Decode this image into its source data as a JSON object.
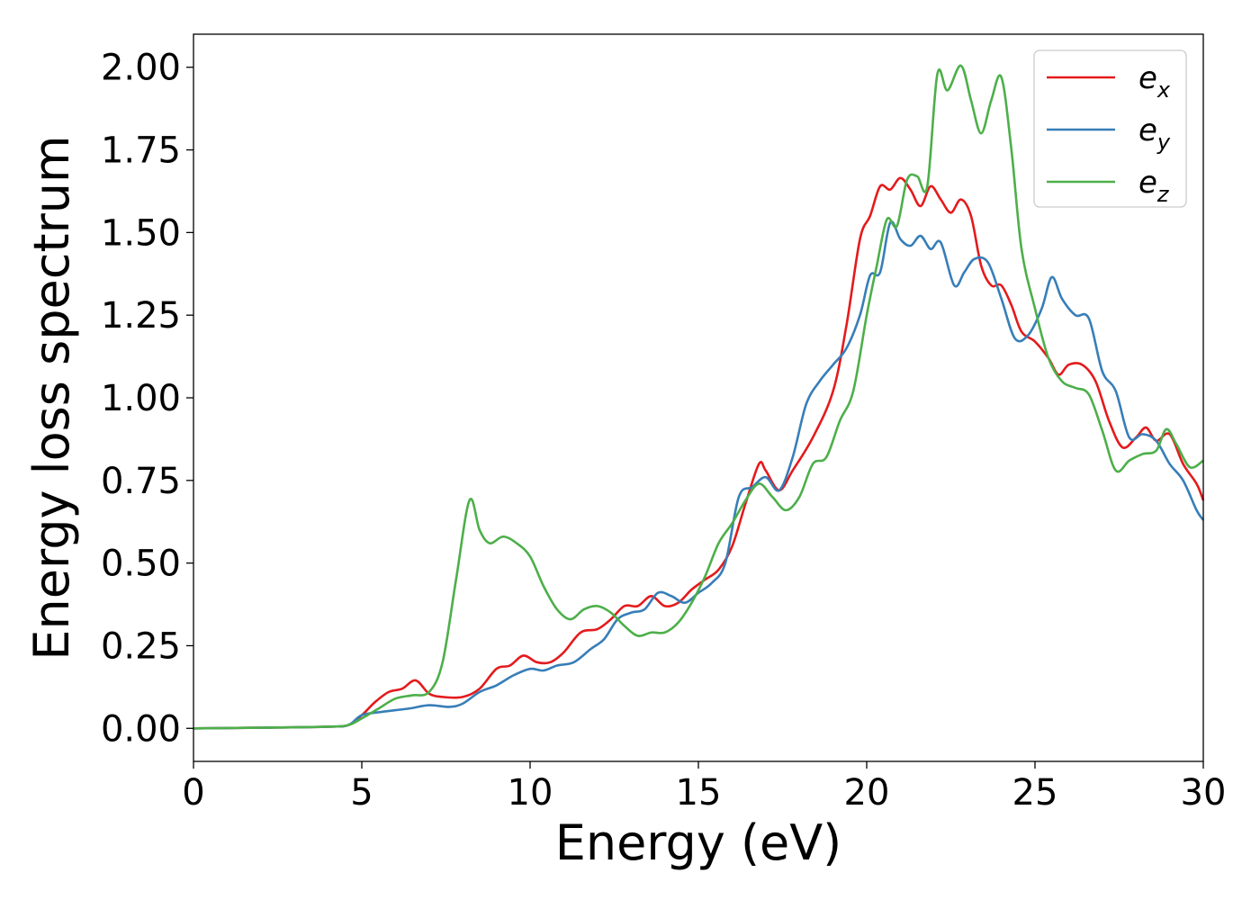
{
  "chart_data": {
    "type": "line",
    "title": "",
    "xlabel": "Energy (eV)",
    "ylabel": "Energy loss spectrum",
    "xlim": [
      0,
      30
    ],
    "ylim": [
      -0.1,
      2.1
    ],
    "xticks": [
      0,
      5,
      10,
      15,
      20,
      25,
      30
    ],
    "xtick_labels": [
      "0",
      "5",
      "10",
      "15",
      "20",
      "25",
      "30"
    ],
    "yticks": [
      0.0,
      0.25,
      0.5,
      0.75,
      1.0,
      1.25,
      1.5,
      1.75,
      2.0
    ],
    "ytick_labels": [
      "0.00",
      "0.25",
      "0.50",
      "0.75",
      "1.00",
      "1.25",
      "1.50",
      "1.75",
      "2.00"
    ],
    "grid": false,
    "legend_position": "top-right",
    "series": [
      {
        "name": "e",
        "subscript": "x",
        "color": "#e41a1c",
        "points": [
          [
            0,
            0.0
          ],
          [
            2,
            0.002
          ],
          [
            4,
            0.005
          ],
          [
            4.6,
            0.01
          ],
          [
            5,
            0.04
          ],
          [
            5.4,
            0.08
          ],
          [
            5.8,
            0.11
          ],
          [
            6.2,
            0.12
          ],
          [
            6.6,
            0.145
          ],
          [
            7,
            0.105
          ],
          [
            7.4,
            0.095
          ],
          [
            8,
            0.095
          ],
          [
            8.5,
            0.12
          ],
          [
            9,
            0.18
          ],
          [
            9.4,
            0.19
          ],
          [
            9.8,
            0.22
          ],
          [
            10.2,
            0.2
          ],
          [
            10.6,
            0.2
          ],
          [
            11,
            0.23
          ],
          [
            11.5,
            0.29
          ],
          [
            12,
            0.3
          ],
          [
            12.4,
            0.33
          ],
          [
            12.8,
            0.37
          ],
          [
            13.2,
            0.37
          ],
          [
            13.6,
            0.4
          ],
          [
            14,
            0.37
          ],
          [
            14.4,
            0.38
          ],
          [
            14.8,
            0.42
          ],
          [
            15.2,
            0.45
          ],
          [
            15.6,
            0.48
          ],
          [
            16,
            0.55
          ],
          [
            16.4,
            0.68
          ],
          [
            16.8,
            0.8
          ],
          [
            17,
            0.78
          ],
          [
            17.4,
            0.72
          ],
          [
            17.8,
            0.78
          ],
          [
            18.4,
            0.88
          ],
          [
            19,
            1.02
          ],
          [
            19.4,
            1.22
          ],
          [
            19.8,
            1.48
          ],
          [
            20.1,
            1.55
          ],
          [
            20.4,
            1.64
          ],
          [
            20.7,
            1.63
          ],
          [
            21,
            1.665
          ],
          [
            21.3,
            1.63
          ],
          [
            21.6,
            1.58
          ],
          [
            21.9,
            1.64
          ],
          [
            22.2,
            1.6
          ],
          [
            22.5,
            1.56
          ],
          [
            22.8,
            1.6
          ],
          [
            23.1,
            1.55
          ],
          [
            23.4,
            1.4
          ],
          [
            23.7,
            1.34
          ],
          [
            24,
            1.34
          ],
          [
            24.3,
            1.28
          ],
          [
            24.6,
            1.2
          ],
          [
            25,
            1.17
          ],
          [
            25.4,
            1.12
          ],
          [
            25.7,
            1.07
          ],
          [
            26,
            1.1
          ],
          [
            26.4,
            1.1
          ],
          [
            26.8,
            1.05
          ],
          [
            27.2,
            0.93
          ],
          [
            27.6,
            0.85
          ],
          [
            28,
            0.88
          ],
          [
            28.3,
            0.91
          ],
          [
            28.6,
            0.87
          ],
          [
            29,
            0.89
          ],
          [
            29.4,
            0.8
          ],
          [
            29.8,
            0.74
          ],
          [
            30,
            0.69
          ]
        ]
      },
      {
        "name": "e",
        "subscript": "y",
        "color": "#377eb8",
        "points": [
          [
            0,
            0.0
          ],
          [
            2,
            0.002
          ],
          [
            4,
            0.005
          ],
          [
            4.6,
            0.01
          ],
          [
            5,
            0.04
          ],
          [
            5.6,
            0.05
          ],
          [
            6.4,
            0.06
          ],
          [
            7,
            0.07
          ],
          [
            7.6,
            0.065
          ],
          [
            8,
            0.075
          ],
          [
            8.5,
            0.11
          ],
          [
            9,
            0.13
          ],
          [
            9.5,
            0.16
          ],
          [
            10,
            0.18
          ],
          [
            10.4,
            0.175
          ],
          [
            10.8,
            0.19
          ],
          [
            11.3,
            0.2
          ],
          [
            11.8,
            0.24
          ],
          [
            12.2,
            0.27
          ],
          [
            12.6,
            0.33
          ],
          [
            13,
            0.35
          ],
          [
            13.4,
            0.36
          ],
          [
            13.8,
            0.41
          ],
          [
            14.2,
            0.4
          ],
          [
            14.6,
            0.38
          ],
          [
            15,
            0.41
          ],
          [
            15.4,
            0.44
          ],
          [
            15.8,
            0.5
          ],
          [
            16.2,
            0.7
          ],
          [
            16.6,
            0.73
          ],
          [
            17,
            0.76
          ],
          [
            17.4,
            0.72
          ],
          [
            17.8,
            0.82
          ],
          [
            18.2,
            0.98
          ],
          [
            18.6,
            1.05
          ],
          [
            19,
            1.1
          ],
          [
            19.4,
            1.15
          ],
          [
            19.8,
            1.25
          ],
          [
            20.1,
            1.37
          ],
          [
            20.4,
            1.38
          ],
          [
            20.7,
            1.53
          ],
          [
            21,
            1.48
          ],
          [
            21.3,
            1.46
          ],
          [
            21.6,
            1.49
          ],
          [
            21.9,
            1.45
          ],
          [
            22.2,
            1.47
          ],
          [
            22.6,
            1.34
          ],
          [
            22.9,
            1.38
          ],
          [
            23.2,
            1.42
          ],
          [
            23.6,
            1.41
          ],
          [
            24,
            1.3
          ],
          [
            24.4,
            1.18
          ],
          [
            24.8,
            1.19
          ],
          [
            25.2,
            1.27
          ],
          [
            25.5,
            1.365
          ],
          [
            25.8,
            1.3
          ],
          [
            26.2,
            1.25
          ],
          [
            26.6,
            1.24
          ],
          [
            27,
            1.08
          ],
          [
            27.4,
            1.02
          ],
          [
            27.8,
            0.88
          ],
          [
            28.2,
            0.89
          ],
          [
            28.6,
            0.87
          ],
          [
            29,
            0.8
          ],
          [
            29.4,
            0.75
          ],
          [
            29.8,
            0.66
          ],
          [
            30,
            0.63
          ]
        ]
      },
      {
        "name": "e",
        "subscript": "z",
        "color": "#4daf4a",
        "points": [
          [
            0,
            0.0
          ],
          [
            2,
            0.002
          ],
          [
            4,
            0.005
          ],
          [
            4.6,
            0.01
          ],
          [
            5,
            0.03
          ],
          [
            5.5,
            0.06
          ],
          [
            6,
            0.09
          ],
          [
            6.5,
            0.1
          ],
          [
            7,
            0.11
          ],
          [
            7.4,
            0.2
          ],
          [
            7.8,
            0.45
          ],
          [
            8.2,
            0.69
          ],
          [
            8.5,
            0.6
          ],
          [
            8.8,
            0.56
          ],
          [
            9.2,
            0.58
          ],
          [
            9.6,
            0.56
          ],
          [
            10,
            0.52
          ],
          [
            10.4,
            0.43
          ],
          [
            10.8,
            0.36
          ],
          [
            11.2,
            0.33
          ],
          [
            11.6,
            0.36
          ],
          [
            12,
            0.37
          ],
          [
            12.4,
            0.35
          ],
          [
            12.8,
            0.31
          ],
          [
            13.2,
            0.28
          ],
          [
            13.6,
            0.29
          ],
          [
            14,
            0.29
          ],
          [
            14.4,
            0.32
          ],
          [
            14.8,
            0.38
          ],
          [
            15.2,
            0.46
          ],
          [
            15.6,
            0.56
          ],
          [
            16,
            0.62
          ],
          [
            16.4,
            0.69
          ],
          [
            16.8,
            0.74
          ],
          [
            17.2,
            0.7
          ],
          [
            17.6,
            0.66
          ],
          [
            18,
            0.7
          ],
          [
            18.4,
            0.8
          ],
          [
            18.8,
            0.82
          ],
          [
            19.2,
            0.93
          ],
          [
            19.6,
            1.02
          ],
          [
            20,
            1.25
          ],
          [
            20.3,
            1.4
          ],
          [
            20.6,
            1.54
          ],
          [
            20.9,
            1.52
          ],
          [
            21.2,
            1.66
          ],
          [
            21.5,
            1.67
          ],
          [
            21.8,
            1.64
          ],
          [
            22.1,
            1.98
          ],
          [
            22.4,
            1.93
          ],
          [
            22.8,
            2.005
          ],
          [
            23.1,
            1.9
          ],
          [
            23.4,
            1.8
          ],
          [
            23.7,
            1.9
          ],
          [
            24,
            1.97
          ],
          [
            24.3,
            1.75
          ],
          [
            24.6,
            1.45
          ],
          [
            25,
            1.27
          ],
          [
            25.4,
            1.12
          ],
          [
            25.8,
            1.05
          ],
          [
            26.2,
            1.03
          ],
          [
            26.6,
            1.01
          ],
          [
            27,
            0.9
          ],
          [
            27.4,
            0.78
          ],
          [
            27.8,
            0.81
          ],
          [
            28.2,
            0.83
          ],
          [
            28.6,
            0.84
          ],
          [
            28.9,
            0.905
          ],
          [
            29.2,
            0.86
          ],
          [
            29.6,
            0.79
          ],
          [
            30,
            0.81
          ]
        ]
      }
    ]
  }
}
